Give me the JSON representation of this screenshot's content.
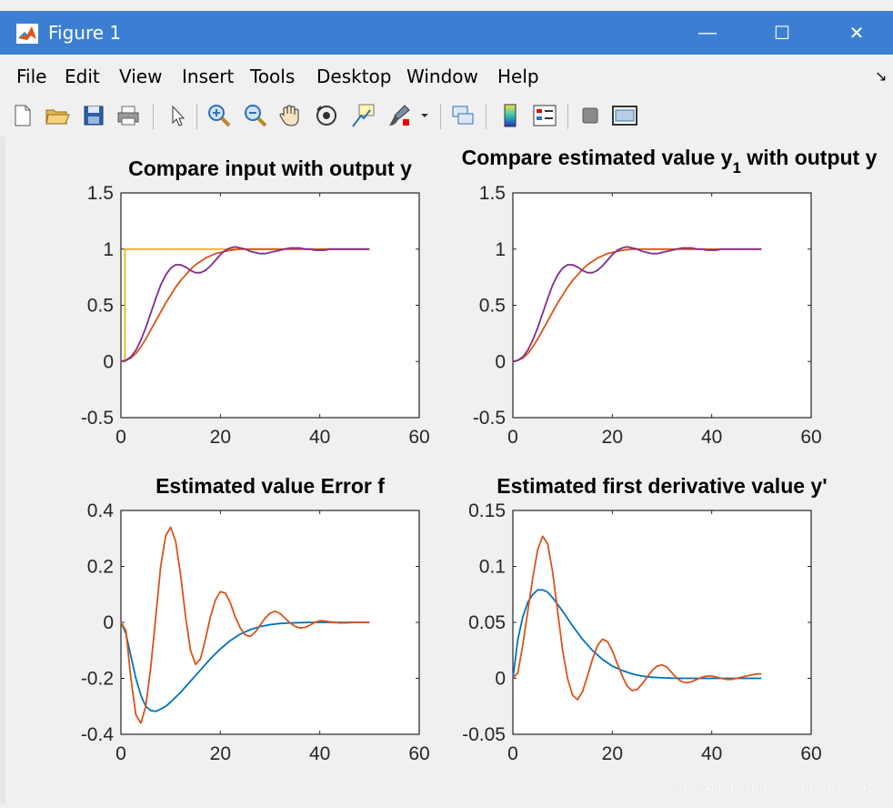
{
  "window": {
    "title": "Figure 1",
    "minimize_label": "—",
    "maximize_label": "☐",
    "close_label": "✕"
  },
  "menu": {
    "items": [
      {
        "label": "File"
      },
      {
        "label": "Edit"
      },
      {
        "label": "View"
      },
      {
        "label": "Insert"
      },
      {
        "label": "Tools"
      },
      {
        "label": "Desktop"
      },
      {
        "label": "Window"
      },
      {
        "label": "Help"
      }
    ],
    "dock_arrow": "↘"
  },
  "toolbar": {
    "icons": [
      "new-figure-icon",
      "open-file-icon",
      "save-icon",
      "print-icon",
      "pointer-icon",
      "zoom-in-icon",
      "zoom-out-icon",
      "pan-hand-icon",
      "rotate-3d-icon",
      "data-cursor-icon",
      "brush-icon",
      "brush-dropdown-icon",
      "link-plot-icon",
      "insert-colorbar-icon",
      "insert-legend-icon",
      "hide-plot-tools-icon",
      "show-plot-tools-icon"
    ]
  },
  "colors": {
    "blue": "#0072bd",
    "orange": "#d95319",
    "yellow": "#edb120",
    "purple": "#7e2f8e"
  },
  "watermark": "https://blog.csdn.net/qq_38169460",
  "chart_data": [
    {
      "type": "line",
      "title": "Compare input with output y",
      "xlim": [
        0,
        60
      ],
      "ylim": [
        -0.5,
        1.5
      ],
      "xticks": [
        0,
        20,
        40,
        60
      ],
      "yticks": [
        -0.5,
        0,
        0.5,
        1,
        1.5
      ],
      "series": [
        {
          "color": "yellow",
          "x": [
            0,
            0.8,
            0.8,
            50
          ],
          "y": [
            0,
            0,
            1,
            1
          ]
        },
        {
          "color": "orange",
          "x": [
            0,
            1,
            2,
            3,
            4,
            5,
            6,
            7,
            8,
            9,
            10,
            11,
            12,
            13,
            14,
            15,
            16,
            17,
            18,
            19,
            20,
            22,
            24,
            26,
            28,
            30,
            32,
            35,
            38,
            41,
            44,
            47,
            50
          ],
          "y": [
            0,
            0.01,
            0.03,
            0.07,
            0.13,
            0.2,
            0.28,
            0.36,
            0.44,
            0.52,
            0.59,
            0.66,
            0.72,
            0.77,
            0.82,
            0.86,
            0.89,
            0.92,
            0.94,
            0.96,
            0.97,
            0.99,
            1.0,
            1.0,
            1.0,
            1.0,
            1.0,
            1.0,
            1.0,
            1.0,
            1.0,
            1.0,
            1.0
          ]
        },
        {
          "color": "purple",
          "x": [
            0,
            1,
            2,
            3,
            4,
            5,
            6,
            7,
            8,
            9,
            10,
            11,
            12,
            13,
            14,
            15,
            16,
            17,
            18,
            19,
            20,
            21,
            22,
            23,
            24,
            25,
            26,
            27,
            28,
            29,
            30,
            31,
            32,
            33,
            34,
            35,
            36,
            37,
            38,
            39,
            40,
            41,
            42,
            43,
            44,
            45,
            46,
            47,
            48,
            49,
            50
          ],
          "y": [
            0,
            0.01,
            0.04,
            0.1,
            0.19,
            0.3,
            0.43,
            0.56,
            0.68,
            0.77,
            0.83,
            0.86,
            0.86,
            0.84,
            0.81,
            0.79,
            0.79,
            0.81,
            0.85,
            0.9,
            0.95,
            0.99,
            1.01,
            1.02,
            1.01,
            1.0,
            0.98,
            0.97,
            0.96,
            0.96,
            0.97,
            0.98,
            0.99,
            1.0,
            1.01,
            1.01,
            1.01,
            1.0,
            1.0,
            0.99,
            0.99,
            0.99,
            1.0,
            1.0,
            1.0,
            1.0,
            1.0,
            1.0,
            1.0,
            1.0,
            1.0
          ]
        }
      ]
    },
    {
      "type": "line",
      "title": "Compare estimated value y",
      "title_sub": "1",
      "title_rest": " with output y",
      "xlim": [
        0,
        60
      ],
      "ylim": [
        -0.5,
        1.5
      ],
      "xticks": [
        0,
        20,
        40,
        60
      ],
      "yticks": [
        -0.5,
        0,
        0.5,
        1,
        1.5
      ],
      "series": [
        {
          "color": "orange",
          "x": [
            0,
            1,
            2,
            3,
            4,
            5,
            6,
            7,
            8,
            9,
            10,
            11,
            12,
            13,
            14,
            15,
            16,
            17,
            18,
            19,
            20,
            22,
            24,
            26,
            28,
            30,
            32,
            35,
            38,
            41,
            44,
            47,
            50
          ],
          "y": [
            0,
            0.01,
            0.03,
            0.07,
            0.13,
            0.2,
            0.28,
            0.36,
            0.44,
            0.52,
            0.59,
            0.66,
            0.72,
            0.77,
            0.82,
            0.86,
            0.89,
            0.92,
            0.94,
            0.96,
            0.97,
            0.99,
            1.0,
            1.0,
            1.0,
            1.0,
            1.0,
            1.0,
            1.0,
            1.0,
            1.0,
            1.0,
            1.0
          ]
        },
        {
          "color": "purple",
          "x": [
            0,
            1,
            2,
            3,
            4,
            5,
            6,
            7,
            8,
            9,
            10,
            11,
            12,
            13,
            14,
            15,
            16,
            17,
            18,
            19,
            20,
            21,
            22,
            23,
            24,
            25,
            26,
            27,
            28,
            29,
            30,
            31,
            32,
            33,
            34,
            35,
            36,
            37,
            38,
            39,
            40,
            41,
            42,
            43,
            44,
            45,
            46,
            47,
            48,
            49,
            50
          ],
          "y": [
            0,
            0.01,
            0.04,
            0.1,
            0.19,
            0.3,
            0.43,
            0.56,
            0.68,
            0.77,
            0.83,
            0.86,
            0.86,
            0.84,
            0.81,
            0.79,
            0.79,
            0.81,
            0.85,
            0.9,
            0.95,
            0.99,
            1.01,
            1.02,
            1.01,
            1.0,
            0.98,
            0.97,
            0.96,
            0.96,
            0.97,
            0.98,
            0.99,
            1.0,
            1.01,
            1.01,
            1.01,
            1.0,
            1.0,
            0.99,
            0.99,
            0.99,
            1.0,
            1.0,
            1.0,
            1.0,
            1.0,
            1.0,
            1.0,
            1.0,
            1.0
          ]
        }
      ]
    },
    {
      "type": "line",
      "title": "Estimated value Error f",
      "xlim": [
        0,
        60
      ],
      "ylim": [
        -0.4,
        0.4
      ],
      "xticks": [
        0,
        20,
        40,
        60
      ],
      "yticks": [
        -0.4,
        -0.2,
        0,
        0.2,
        0.4
      ],
      "series": [
        {
          "color": "blue",
          "x": [
            0,
            1,
            2,
            3,
            4,
            5,
            6,
            7,
            8,
            9,
            10,
            12,
            14,
            16,
            18,
            20,
            22,
            24,
            26,
            28,
            30,
            32,
            34,
            36,
            38,
            40,
            42,
            44,
            46,
            48,
            50
          ],
          "y": [
            0,
            -0.04,
            -0.12,
            -0.2,
            -0.26,
            -0.3,
            -0.315,
            -0.318,
            -0.31,
            -0.3,
            -0.285,
            -0.25,
            -0.21,
            -0.17,
            -0.13,
            -0.095,
            -0.065,
            -0.042,
            -0.026,
            -0.015,
            -0.008,
            -0.004,
            -0.002,
            -0.001,
            0,
            0,
            0,
            0,
            0,
            0,
            0
          ]
        },
        {
          "color": "orange",
          "x": [
            0,
            1,
            2,
            3,
            4,
            5,
            6,
            7,
            8,
            9,
            10,
            11,
            12,
            13,
            14,
            15,
            16,
            17,
            18,
            19,
            20,
            21,
            22,
            23,
            24,
            25,
            26,
            27,
            28,
            29,
            30,
            31,
            32,
            33,
            34,
            35,
            36,
            37,
            38,
            39,
            40,
            41,
            42,
            43,
            44,
            45,
            46,
            47,
            48,
            49,
            50
          ],
          "y": [
            0,
            -0.03,
            -0.2,
            -0.33,
            -0.36,
            -0.3,
            -0.16,
            0.02,
            0.2,
            0.31,
            0.34,
            0.29,
            0.17,
            0.02,
            -0.1,
            -0.15,
            -0.13,
            -0.06,
            0.02,
            0.08,
            0.11,
            0.105,
            0.07,
            0.02,
            -0.02,
            -0.045,
            -0.05,
            -0.035,
            -0.01,
            0.015,
            0.033,
            0.04,
            0.032,
            0.015,
            -0.002,
            -0.014,
            -0.02,
            -0.018,
            -0.01,
            0.0,
            0.006,
            0.005,
            0.002,
            0.0,
            -0.002,
            -0.002,
            -0.001,
            0.0,
            0.0,
            0.0,
            0.0
          ]
        }
      ]
    },
    {
      "type": "line",
      "title": "Estimated first derivative value y'",
      "xlim": [
        0,
        60
      ],
      "ylim": [
        -0.05,
        0.15
      ],
      "xticks": [
        0,
        20,
        40,
        60
      ],
      "yticks": [
        -0.05,
        0,
        0.05,
        0.1,
        0.15
      ],
      "series": [
        {
          "color": "blue",
          "x": [
            0,
            1,
            2,
            3,
            4,
            5,
            6,
            7,
            8,
            9,
            10,
            12,
            14,
            16,
            18,
            20,
            22,
            24,
            26,
            28,
            30,
            32,
            35,
            38,
            41,
            44,
            47,
            50
          ],
          "y": [
            0,
            0.035,
            0.055,
            0.068,
            0.075,
            0.079,
            0.079,
            0.077,
            0.072,
            0.066,
            0.06,
            0.047,
            0.035,
            0.025,
            0.017,
            0.011,
            0.007,
            0.004,
            0.002,
            0.001,
            0.0005,
            0.0002,
            0,
            0,
            0,
            0,
            0,
            0
          ]
        },
        {
          "color": "orange",
          "x": [
            0,
            1,
            2,
            3,
            4,
            5,
            6,
            7,
            8,
            9,
            10,
            11,
            12,
            13,
            14,
            15,
            16,
            17,
            18,
            19,
            20,
            21,
            22,
            23,
            24,
            25,
            26,
            27,
            28,
            29,
            30,
            31,
            32,
            33,
            34,
            35,
            36,
            37,
            38,
            39,
            40,
            41,
            42,
            43,
            44,
            45,
            46,
            47,
            48,
            49,
            50
          ],
          "y": [
            0,
            0.005,
            0.03,
            0.06,
            0.09,
            0.115,
            0.127,
            0.12,
            0.095,
            0.06,
            0.025,
            0.0,
            -0.015,
            -0.019,
            -0.012,
            0.002,
            0.017,
            0.029,
            0.035,
            0.033,
            0.025,
            0.013,
            0.002,
            -0.007,
            -0.011,
            -0.01,
            -0.005,
            0.001,
            0.007,
            0.011,
            0.012,
            0.01,
            0.005,
            0.0,
            -0.003,
            -0.004,
            -0.003,
            -0.001,
            0.001,
            0.002,
            0.002,
            0.001,
            0.0,
            -0.001,
            -0.001,
            0.0,
            0.001,
            0.002,
            0.003,
            0.004,
            0.004
          ]
        }
      ]
    }
  ]
}
